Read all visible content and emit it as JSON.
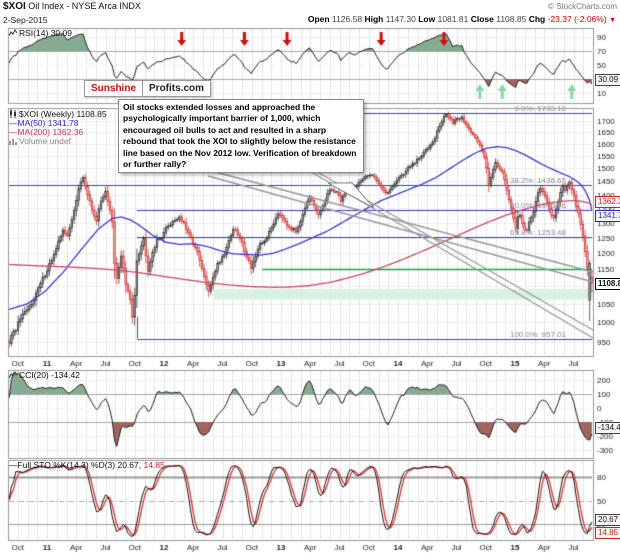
{
  "header": {
    "symbol": "$XOI",
    "title_rest": " Oil Index - NYSE Arca INDX",
    "copyright": "© StockCharts.com",
    "date": "2-Sep-2015",
    "quote": {
      "open_label": "Open",
      "open": "1126.58",
      "high_label": "High",
      "high": "1147.30",
      "low_label": "Low",
      "low": "1081.81",
      "close_label": "Close",
      "close": "1108.85",
      "chg_label": "Chg",
      "chg": "-23.37 (-2.06%)",
      "chg_arrow": "▼"
    }
  },
  "logo": {
    "part1": "Sunshine",
    "part2": "Profits.com"
  },
  "annotation": {
    "text": "Oil stocks extended losses and approached the psychologically important barrier of 1,000, which encouraged oil bulls to act and resulted in a sharp rebound that took the XOI to slightly below the resistance line based on the Nov 2012 low. Verification of breakdown or further rally?"
  },
  "legends": {
    "rsi": "RSI(14) 30.09",
    "price_main": "$XOI (Weekly) 1108.85",
    "ma50": "MA(50) 1341.78",
    "ma200": "MA(200) 1362.36",
    "volume": "Volume undef",
    "cci": "CCI(20) -134.42",
    "sto_black": "Full STO %K(14,3) %D(3) 20.67,",
    "sto_red": "14.85"
  },
  "value_boxes": {
    "rsi": "30.09",
    "ma200": "1362.36",
    "ma50": "1341.78",
    "close": "1108.85",
    "cci": "-134.42",
    "sto_k": "20.67",
    "sto_d": "14.85"
  },
  "chart_data": {
    "type": "candlestick",
    "weeks": 261,
    "x_axis": {
      "months_total": 60,
      "labels": [
        {
          "m": 1,
          "t": "Oct"
        },
        {
          "m": 4,
          "t": "11",
          "b": true
        },
        {
          "m": 7,
          "t": "Apr"
        },
        {
          "m": 10,
          "t": "Jul"
        },
        {
          "m": 13,
          "t": "Oct"
        },
        {
          "m": 16,
          "t": "12",
          "b": true
        },
        {
          "m": 19,
          "t": "Apr"
        },
        {
          "m": 22,
          "t": "Jul"
        },
        {
          "m": 25,
          "t": "Oct"
        },
        {
          "m": 28,
          "t": "13",
          "b": true
        },
        {
          "m": 31,
          "t": "Apr"
        },
        {
          "m": 34,
          "t": "Jul"
        },
        {
          "m": 37,
          "t": "Oct"
        },
        {
          "m": 40,
          "t": "14",
          "b": true
        },
        {
          "m": 43,
          "t": "Apr"
        },
        {
          "m": 46,
          "t": "Jul"
        },
        {
          "m": 49,
          "t": "Oct"
        },
        {
          "m": 52,
          "t": "15",
          "b": true
        },
        {
          "m": 55,
          "t": "Apr"
        },
        {
          "m": 58,
          "t": "Jul"
        }
      ]
    },
    "price_panel": {
      "scale": "log",
      "ymin": 918,
      "ymax": 1749,
      "yticks": [
        950,
        1000,
        1050,
        1100,
        1150,
        1200,
        1250,
        1300,
        1350,
        1400,
        1450,
        1500,
        1550,
        1600,
        1650,
        1700
      ],
      "last_candle": {
        "open": 1126.58,
        "high": 1147.3,
        "low": 1081.81,
        "close": 1108.85
      },
      "close_anchors": [
        [
          0,
          950
        ],
        [
          2,
          972
        ],
        [
          5,
          1008
        ],
        [
          9,
          1040
        ],
        [
          13,
          1092
        ],
        [
          17,
          1150
        ],
        [
          21,
          1210
        ],
        [
          24,
          1280
        ],
        [
          26,
          1252
        ],
        [
          28,
          1310
        ],
        [
          31,
          1420
        ],
        [
          33,
          1465
        ],
        [
          35,
          1400
        ],
        [
          37,
          1345
        ],
        [
          39,
          1310
        ],
        [
          41,
          1375
        ],
        [
          43,
          1415
        ],
        [
          45,
          1340
        ],
        [
          46,
          1300
        ],
        [
          47,
          1165
        ],
        [
          48,
          1120
        ],
        [
          50,
          1195
        ],
        [
          52,
          1105
        ],
        [
          54,
          1060
        ],
        [
          55,
          1015
        ],
        [
          56,
          1080
        ],
        [
          57,
          1180
        ],
        [
          59,
          1225
        ],
        [
          60,
          1245
        ],
        [
          62,
          1150
        ],
        [
          64,
          1205
        ],
        [
          66,
          1240
        ],
        [
          68,
          1255
        ],
        [
          70,
          1280
        ],
        [
          73,
          1305
        ],
        [
          76,
          1320
        ],
        [
          78,
          1295
        ],
        [
          80,
          1260
        ],
        [
          82,
          1235
        ],
        [
          84,
          1200
        ],
        [
          86,
          1150
        ],
        [
          88,
          1105
        ],
        [
          89,
          1080
        ],
        [
          91,
          1130
        ],
        [
          93,
          1165
        ],
        [
          96,
          1200
        ],
        [
          98,
          1240
        ],
        [
          100,
          1280
        ],
        [
          102,
          1260
        ],
        [
          104,
          1230
        ],
        [
          106,
          1190
        ],
        [
          108,
          1158
        ],
        [
          110,
          1190
        ],
        [
          112,
          1225
        ],
        [
          114,
          1240
        ],
        [
          116,
          1265
        ],
        [
          118,
          1300
        ],
        [
          120,
          1335
        ],
        [
          122,
          1320
        ],
        [
          124,
          1295
        ],
        [
          126,
          1280
        ],
        [
          128,
          1270
        ],
        [
          130,
          1310
        ],
        [
          132,
          1355
        ],
        [
          134,
          1385
        ],
        [
          136,
          1360
        ],
        [
          138,
          1325
        ],
        [
          140,
          1360
        ],
        [
          142,
          1400
        ],
        [
          144,
          1420
        ],
        [
          146,
          1410
        ],
        [
          148,
          1380
        ],
        [
          150,
          1410
        ],
        [
          152,
          1440
        ],
        [
          154,
          1425
        ],
        [
          156,
          1445
        ],
        [
          158,
          1455
        ],
        [
          160,
          1470
        ],
        [
          162,
          1480
        ],
        [
          164,
          1455
        ],
        [
          166,
          1430
        ],
        [
          168,
          1400
        ],
        [
          170,
          1420
        ],
        [
          172,
          1445
        ],
        [
          174,
          1465
        ],
        [
          176,
          1480
        ],
        [
          178,
          1500
        ],
        [
          180,
          1515
        ],
        [
          182,
          1530
        ],
        [
          184,
          1550
        ],
        [
          186,
          1575
        ],
        [
          188,
          1600
        ],
        [
          190,
          1630
        ],
        [
          192,
          1675
        ],
        [
          194,
          1715
        ],
        [
          195,
          1730
        ],
        [
          196,
          1720
        ],
        [
          198,
          1690
        ],
        [
          200,
          1705
        ],
        [
          202,
          1715
        ],
        [
          204,
          1680
        ],
        [
          206,
          1655
        ],
        [
          208,
          1630
        ],
        [
          210,
          1590
        ],
        [
          212,
          1545
        ],
        [
          213,
          1500
        ],
        [
          214,
          1445
        ],
        [
          215,
          1470
        ],
        [
          216,
          1500
        ],
        [
          217,
          1520
        ],
        [
          218,
          1505
        ],
        [
          220,
          1490
        ],
        [
          221,
          1460
        ],
        [
          222,
          1420
        ],
        [
          223,
          1380
        ],
        [
          224,
          1345
        ],
        [
          225,
          1310
        ],
        [
          226,
          1285
        ],
        [
          227,
          1320
        ],
        [
          228,
          1330
        ],
        [
          229,
          1300
        ],
        [
          230,
          1280
        ],
        [
          231,
          1270
        ],
        [
          232,
          1300
        ],
        [
          233,
          1320
        ],
        [
          234,
          1340
        ],
        [
          235,
          1380
        ],
        [
          236,
          1405
        ],
        [
          237,
          1425
        ],
        [
          238,
          1410
        ],
        [
          239,
          1390
        ],
        [
          240,
          1370
        ],
        [
          241,
          1350
        ],
        [
          242,
          1330
        ],
        [
          243,
          1320
        ],
        [
          244,
          1345
        ],
        [
          245,
          1380
        ],
        [
          246,
          1410
        ],
        [
          247,
          1430
        ],
        [
          248,
          1420
        ],
        [
          249,
          1435
        ],
        [
          250,
          1440
        ],
        [
          251,
          1420
        ],
        [
          252,
          1395
        ],
        [
          253,
          1360
        ],
        [
          254,
          1330
        ],
        [
          255,
          1290
        ],
        [
          256,
          1250
        ],
        [
          257,
          1210
        ],
        [
          258,
          1150
        ],
        [
          259,
          1168
        ],
        [
          260,
          1108.85
        ]
      ],
      "override_candles": {
        "259": [
          1060,
          1178,
          1004,
          1168
        ],
        "260": [
          1126.58,
          1147.3,
          1081.81,
          1108.85
        ]
      },
      "ma50_anchors": [
        [
          0,
          1035
        ],
        [
          8,
          1050
        ],
        [
          16,
          1085
        ],
        [
          24,
          1140
        ],
        [
          32,
          1210
        ],
        [
          40,
          1280
        ],
        [
          46,
          1315
        ],
        [
          50,
          1320
        ],
        [
          54,
          1310
        ],
        [
          58,
          1292
        ],
        [
          64,
          1258
        ],
        [
          70,
          1235
        ],
        [
          76,
          1228
        ],
        [
          82,
          1230
        ],
        [
          88,
          1222
        ],
        [
          94,
          1208
        ],
        [
          100,
          1198
        ],
        [
          106,
          1196
        ],
        [
          112,
          1194
        ],
        [
          118,
          1200
        ],
        [
          124,
          1215
        ],
        [
          130,
          1232
        ],
        [
          136,
          1252
        ],
        [
          142,
          1272
        ],
        [
          148,
          1298
        ],
        [
          154,
          1325
        ],
        [
          160,
          1352
        ],
        [
          166,
          1378
        ],
        [
          172,
          1398
        ],
        [
          178,
          1418
        ],
        [
          184,
          1438
        ],
        [
          190,
          1462
        ],
        [
          196,
          1495
        ],
        [
          202,
          1530
        ],
        [
          208,
          1562
        ],
        [
          213,
          1582
        ],
        [
          218,
          1588
        ],
        [
          222,
          1584
        ],
        [
          226,
          1572
        ],
        [
          230,
          1555
        ],
        [
          234,
          1535
        ],
        [
          238,
          1515
        ],
        [
          242,
          1498
        ],
        [
          246,
          1482
        ],
        [
          250,
          1468
        ],
        [
          253,
          1452
        ],
        [
          255,
          1438
        ],
        [
          257,
          1415
        ],
        [
          259,
          1378
        ],
        [
          260,
          1341.78
        ]
      ],
      "ma200_anchors": [
        [
          0,
          1165
        ],
        [
          12,
          1161
        ],
        [
          24,
          1158
        ],
        [
          36,
          1154
        ],
        [
          48,
          1148
        ],
        [
          58,
          1140
        ],
        [
          68,
          1130
        ],
        [
          78,
          1120
        ],
        [
          88,
          1111
        ],
        [
          98,
          1104
        ],
        [
          108,
          1099
        ],
        [
          118,
          1097
        ],
        [
          126,
          1098
        ],
        [
          134,
          1102
        ],
        [
          142,
          1110
        ],
        [
          150,
          1122
        ],
        [
          158,
          1137
        ],
        [
          166,
          1155
        ],
        [
          174,
          1176
        ],
        [
          182,
          1199
        ],
        [
          190,
          1224
        ],
        [
          198,
          1250
        ],
        [
          206,
          1277
        ],
        [
          214,
          1303
        ],
        [
          222,
          1327
        ],
        [
          230,
          1347
        ],
        [
          236,
          1360
        ],
        [
          242,
          1370
        ],
        [
          247,
          1376
        ],
        [
          252,
          1378
        ],
        [
          255,
          1376
        ],
        [
          258,
          1371
        ],
        [
          260,
          1362.36
        ]
      ],
      "fib_levels": [
        {
          "price": 1733.12,
          "label": "0.0%: 1733.12",
          "start_week": 57
        },
        {
          "price": 1436.65,
          "label": "38.2%: 1436.65",
          "start_week": 0
        },
        {
          "price": 1345.06,
          "label": "50.0%: 1345.06",
          "start_week": 57
        },
        {
          "price": 1253.48,
          "label": "61.8%: 1253.48",
          "start_week": 57
        },
        {
          "price": 957.01,
          "label": "100.0%: 957.01",
          "start_week": 57
        }
      ],
      "fib_anchor_vline": {
        "week": 57,
        "from": 1015,
        "to": 960
      },
      "support_line": {
        "price": 1150,
        "start_week": 113
      },
      "support_zone": {
        "from": 1062,
        "to": 1092,
        "start_week": 91
      },
      "trendlines": [
        [
          200,
          168,
          593,
          272
        ],
        [
          208,
          176,
          593,
          282
        ],
        [
          300,
          162,
          593,
          330
        ],
        [
          308,
          170,
          593,
          338
        ]
      ],
      "colors": {
        "up_fill": "#9e9e9e",
        "up_stroke": "#222222",
        "down_fill": "#f0a0a0",
        "down_stroke": "#cc2020",
        "ma50": "#3b3bd0",
        "ma200": "#cc4466",
        "fib": "#3a3acc",
        "fib_label": "#8a8a8a",
        "grid": "#e4e4e4",
        "hgrid": "#ececec",
        "band": "#d8f2e2",
        "green_line": "#00b050",
        "trend": "#999999",
        "border": "#999999",
        "tick_text": "#222222",
        "fill_hi": "#86ab92",
        "fill_lo": "#a0655c",
        "line": "#222222",
        "sto_k": "#111111",
        "sto_d": "#e03333",
        "arrow_red": "#cc1111",
        "arrow_green": "#8ad6ac"
      }
    },
    "rsi_panel": {
      "period": 14,
      "value": 30.09,
      "yticks": [
        90,
        70,
        50,
        30,
        10
      ],
      "red_arrow_weeks": [
        77,
        105,
        124,
        166,
        194
      ],
      "green_arrow_weeks": [
        210,
        220,
        251
      ]
    },
    "cci_panel": {
      "period": 20,
      "value": -134.42,
      "yticks": [
        200,
        100,
        0,
        -100,
        -200,
        -300
      ]
    },
    "sto_panel": {
      "value_k": 20.67,
      "value_d": 14.85,
      "yticks": [
        80,
        50,
        20
      ]
    }
  }
}
